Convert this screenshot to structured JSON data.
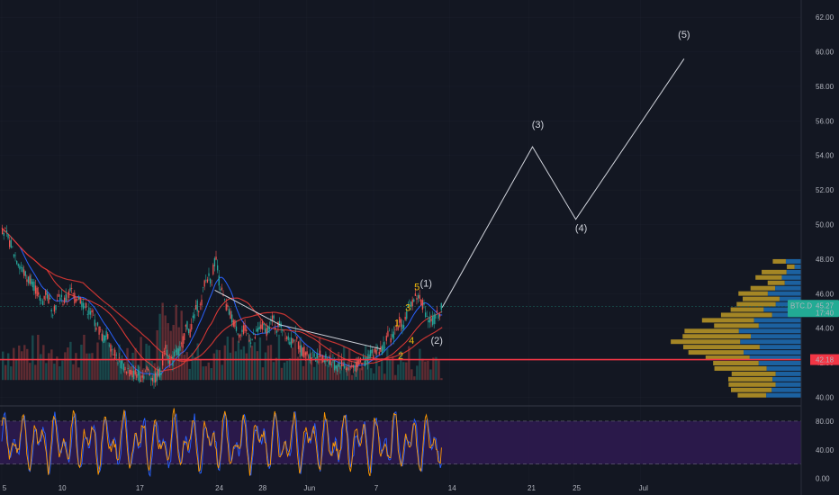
{
  "chart_data": {
    "type": "line",
    "ticker": "BTC.D",
    "main_pane": {
      "y_range": [
        39.5,
        63.0
      ],
      "y_ticks": [
        {
          "label": "62.00",
          "v": 62
        },
        {
          "label": "60.00",
          "v": 60
        },
        {
          "label": "58.00",
          "v": 58
        },
        {
          "label": "56.00",
          "v": 56
        },
        {
          "label": "54.00",
          "v": 54
        },
        {
          "label": "52.00",
          "v": 52
        },
        {
          "label": "50.00",
          "v": 50
        },
        {
          "label": "48.00",
          "v": 48
        },
        {
          "label": "46.00",
          "v": 46
        },
        {
          "label": "44.00",
          "v": 44
        },
        {
          "label": "42.00",
          "v": 42
        },
        {
          "label": "40.00",
          "v": 40
        }
      ],
      "last_price_label": "45.27",
      "last_price": 45.27,
      "countdown_label": "17:40",
      "horizontal_level": {
        "label": "42.18",
        "value": 42.18,
        "color": "#f23645"
      },
      "price_path": [
        [
          0,
          49.8
        ],
        [
          4,
          49
        ],
        [
          8,
          48
        ],
        [
          12,
          47.2
        ],
        [
          14,
          46.8
        ],
        [
          16,
          46.9
        ],
        [
          18,
          46.4
        ],
        [
          20,
          45.8
        ],
        [
          22,
          45.5
        ],
        [
          24,
          46.1
        ],
        [
          26,
          45.6
        ],
        [
          28,
          45.1
        ],
        [
          30,
          45.4
        ],
        [
          32,
          45.9
        ],
        [
          34,
          45.5
        ],
        [
          36,
          45.8
        ],
        [
          38,
          46.2
        ],
        [
          40,
          45.7
        ],
        [
          42,
          45.9
        ],
        [
          44,
          45.5
        ],
        [
          46,
          45.2
        ],
        [
          48,
          45.0
        ],
        [
          50,
          44.7
        ],
        [
          52,
          44.2
        ],
        [
          54,
          43.8
        ],
        [
          56,
          43.4
        ],
        [
          58,
          43.6
        ],
        [
          60,
          43.0
        ],
        [
          62,
          42.6
        ],
        [
          64,
          42.2
        ],
        [
          66,
          41.9
        ],
        [
          68,
          41.7
        ],
        [
          70,
          41.5
        ],
        [
          72,
          41.3
        ],
        [
          74,
          41.4
        ],
        [
          76,
          41.2
        ],
        [
          78,
          41.3
        ],
        [
          80,
          41.6
        ],
        [
          82,
          41.4
        ],
        [
          84,
          41.0
        ],
        [
          86,
          41.3
        ],
        [
          88,
          41.5
        ],
        [
          90,
          43.2
        ],
        [
          92,
          42.3
        ],
        [
          94,
          41.9
        ],
        [
          96,
          42.8
        ],
        [
          98,
          42.5
        ],
        [
          100,
          43.2
        ],
        [
          102,
          44.2
        ],
        [
          104,
          43.8
        ],
        [
          106,
          44.6
        ],
        [
          108,
          45.3
        ],
        [
          110,
          45.2
        ],
        [
          112,
          46.6
        ],
        [
          114,
          47.0
        ],
        [
          116,
          46.8
        ],
        [
          118,
          48.2
        ],
        [
          120,
          46.8
        ],
        [
          122,
          45.9
        ],
        [
          124,
          45.2
        ],
        [
          126,
          44.8
        ],
        [
          128,
          44.4
        ],
        [
          130,
          44.0
        ],
        [
          132,
          43.6
        ],
        [
          134,
          43.9
        ],
        [
          136,
          43.7
        ],
        [
          138,
          43.3
        ],
        [
          140,
          43.5
        ],
        [
          142,
          43.9
        ],
        [
          144,
          44.1
        ],
        [
          146,
          43.8
        ],
        [
          148,
          44.2
        ],
        [
          150,
          44.5
        ],
        [
          152,
          44.0
        ],
        [
          154,
          44.3
        ],
        [
          156,
          43.9
        ],
        [
          158,
          43.5
        ],
        [
          160,
          43.2
        ],
        [
          162,
          43.6
        ],
        [
          164,
          43.0
        ],
        [
          166,
          42.7
        ],
        [
          168,
          42.6
        ],
        [
          170,
          42.4
        ],
        [
          172,
          42.5
        ],
        [
          174,
          42.3
        ],
        [
          176,
          42.4
        ],
        [
          178,
          42.1
        ],
        [
          180,
          42.3
        ],
        [
          182,
          42.0
        ],
        [
          184,
          41.8
        ],
        [
          186,
          41.7
        ],
        [
          188,
          42.0
        ],
        [
          190,
          41.8
        ],
        [
          192,
          41.6
        ],
        [
          194,
          41.9
        ],
        [
          196,
          41.7
        ],
        [
          198,
          42.2
        ],
        [
          200,
          42.0
        ],
        [
          202,
          42.1
        ],
        [
          204,
          42.6
        ],
        [
          206,
          42.5
        ],
        [
          208,
          42.9
        ],
        [
          210,
          42.7
        ],
        [
          212,
          43.2
        ],
        [
          214,
          43.6
        ],
        [
          216,
          43.4
        ],
        [
          218,
          44.0
        ],
        [
          220,
          44.4
        ],
        [
          222,
          44.2
        ],
        [
          224,
          44.8
        ],
        [
          226,
          45.4
        ],
        [
          228,
          45.7
        ],
        [
          230,
          45.9
        ],
        [
          232,
          45.6
        ],
        [
          234,
          45.1
        ],
        [
          236,
          44.5
        ],
        [
          238,
          44.4
        ],
        [
          240,
          44.6
        ],
        [
          242,
          44.9
        ],
        [
          244,
          45.3
        ]
      ],
      "wave_lines": [
        {
          "color": "#d1d4dc",
          "points": [
            [
              244,
              45.2
            ],
            [
              294,
              54.5
            ],
            [
              318,
              50.3
            ],
            [
              378,
              59.6
            ]
          ]
        },
        {
          "color": "#d1d4dc",
          "points": [
            [
              118,
              46.2
            ],
            [
              154,
              44.2
            ],
            [
              210,
              42.8
            ]
          ]
        }
      ],
      "wave_labels": [
        {
          "text": "(5)",
          "color": "#d1d4dc",
          "t": 378,
          "v": 60.8
        },
        {
          "text": "(3)",
          "color": "#d1d4dc",
          "t": 297,
          "v": 55.6
        },
        {
          "text": "(4)",
          "color": "#d1d4dc",
          "t": 321,
          "v": 49.6
        },
        {
          "text": "(1)",
          "color": "#d1d4dc",
          "t": 235,
          "v": 46.4
        },
        {
          "text": "(2)",
          "color": "#d1d4dc",
          "t": 241,
          "v": 43.1
        },
        {
          "text": "5",
          "color": "#f0b90b",
          "t": 230,
          "v": 46.2
        },
        {
          "text": "3",
          "color": "#f0b90b",
          "t": 225,
          "v": 45.0
        },
        {
          "text": "1",
          "color": "#f0b90b",
          "t": 219,
          "v": 44.1
        },
        {
          "text": "4",
          "color": "#f0b90b",
          "t": 227,
          "v": 43.1
        },
        {
          "text": "2",
          "color": "#f0b90b",
          "t": 221,
          "v": 42.2
        }
      ]
    },
    "oscillator_pane": {
      "y_range": [
        -8,
        100
      ],
      "y_ticks": [
        {
          "label": "80.00",
          "v": 80
        },
        {
          "label": "40.00",
          "v": 40
        },
        {
          "label": "0.00",
          "v": 0
        }
      ],
      "band": [
        20,
        80
      ]
    },
    "x_ticks": [
      {
        "label": "5",
        "t": 0
      },
      {
        "label": "10",
        "t": 32
      },
      {
        "label": "17",
        "t": 75
      },
      {
        "label": "24",
        "t": 119
      },
      {
        "label": "28",
        "t": 143
      },
      {
        "label": "Jun",
        "t": 169
      },
      {
        "label": "7",
        "t": 206
      },
      {
        "label": "14",
        "t": 248
      },
      {
        "label": "21",
        "t": 292
      },
      {
        "label": "25",
        "t": 317
      },
      {
        "label": "Jul",
        "t": 354
      }
    ],
    "colors": {
      "background": "#131722",
      "grid": "#2a2e39",
      "up": "#26a69a",
      "down": "#ef5350",
      "wave_line": "#d1d4dc",
      "wave_minor": "#f0b90b",
      "level": "#f23645",
      "ticker_badge": "#22ab94",
      "rsi_band": "#2d1a4f",
      "ma_blue": "#2962ff",
      "ma_red": "#e53935",
      "vp_gold": "#c9a227",
      "vp_blue": "#1e6fb6"
    }
  }
}
